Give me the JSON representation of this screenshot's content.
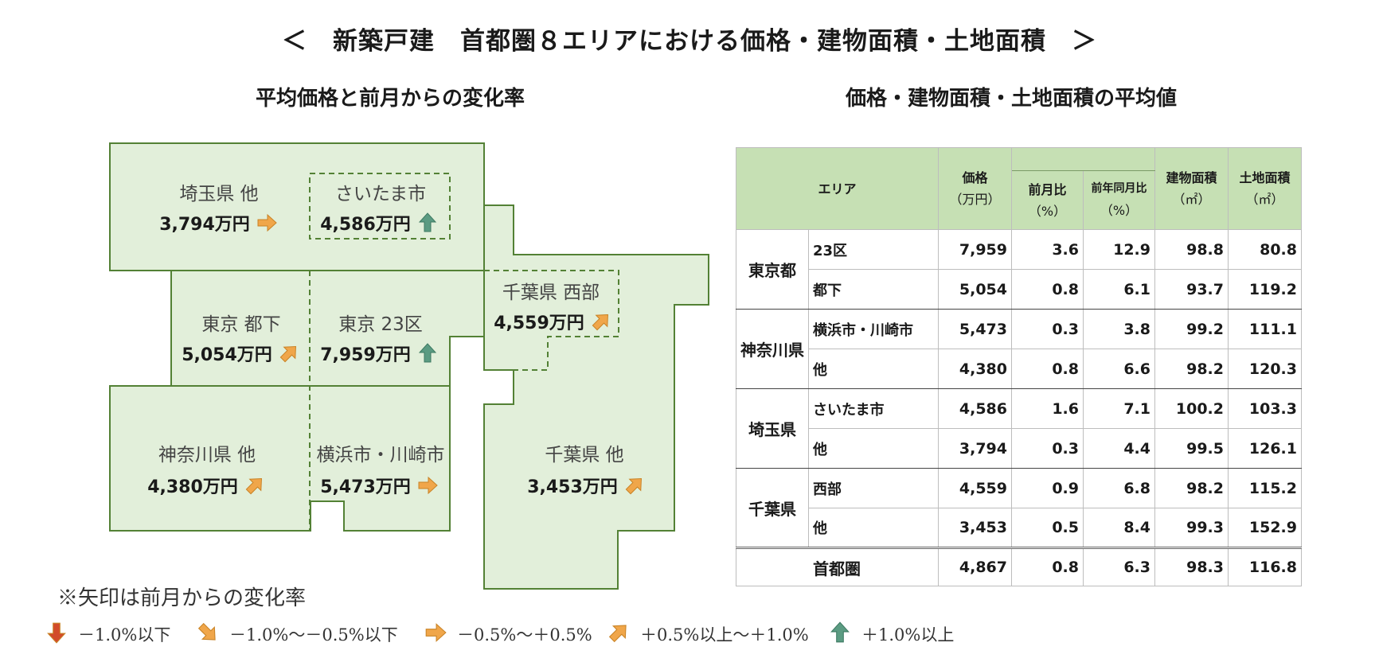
{
  "title": "＜　新築戸建　首都圏８エリアにおける価格・建物面積・土地面積　＞",
  "map_title": "平均価格と前月からの変化率",
  "table_title": "価格・建物面積・土地面積の平均値",
  "colors": {
    "fill": "#e2efda",
    "border": "#538135",
    "header": "#c6e0b4",
    "arrow_up": "#5b9b82",
    "arrow_orange": "#f0a64a",
    "arrow_down": "#d24a2a"
  },
  "regions": [
    {
      "name": "埼玉県 他",
      "price": "3,794万円",
      "arrow": "right"
    },
    {
      "name": "さいたま市",
      "price": "4,586万円",
      "arrow": "up"
    },
    {
      "name": "東京 都下",
      "price": "5,054万円",
      "arrow": "up-right"
    },
    {
      "name": "東京 23区",
      "price": "7,959万円",
      "arrow": "up"
    },
    {
      "name": "千葉県 西部",
      "price": "4,559万円",
      "arrow": "up-right"
    },
    {
      "name": "神奈川県 他",
      "price": "4,380万円",
      "arrow": "up-right"
    },
    {
      "name": "横浜市・川崎市",
      "price": "5,473万円",
      "arrow": "right"
    },
    {
      "name": "千葉県 他",
      "price": "3,453万円",
      "arrow": "up-right"
    }
  ],
  "note": "※矢印は前月からの変化率",
  "legend": [
    {
      "icon": "down",
      "label": "－1.0%以下"
    },
    {
      "icon": "down-right",
      "label": "－1.0%～－0.5%以下"
    },
    {
      "icon": "right",
      "label": "－0.5%～＋0.5%"
    },
    {
      "icon": "up-right",
      "label": "＋0.5%以上～＋1.0%"
    },
    {
      "icon": "up",
      "label": "＋1.0%以上"
    }
  ],
  "table": {
    "headers": {
      "area": "エリア",
      "price": "価格",
      "price_unit": "（万円）",
      "mom": "前月比",
      "mom_unit": "（%）",
      "yoy": "前年同月比",
      "yoy_unit": "（%）",
      "building": "建物面積",
      "building_unit": "（㎡）",
      "land": "土地面積",
      "land_unit": "（㎡）"
    },
    "groups": [
      {
        "pref": "東京都",
        "rows": [
          {
            "sub": "23区",
            "price": "7,959",
            "mom": "3.6",
            "yoy": "12.9",
            "building": "98.8",
            "land": "80.8"
          },
          {
            "sub": "都下",
            "price": "5,054",
            "mom": "0.8",
            "yoy": "6.1",
            "building": "93.7",
            "land": "119.2"
          }
        ]
      },
      {
        "pref": "神奈川県",
        "rows": [
          {
            "sub": "横浜市・川崎市",
            "price": "5,473",
            "mom": "0.3",
            "yoy": "3.8",
            "building": "99.2",
            "land": "111.1"
          },
          {
            "sub": "他",
            "price": "4,380",
            "mom": "0.8",
            "yoy": "6.6",
            "building": "98.2",
            "land": "120.3"
          }
        ]
      },
      {
        "pref": "埼玉県",
        "rows": [
          {
            "sub": "さいたま市",
            "price": "4,586",
            "mom": "1.6",
            "yoy": "7.1",
            "building": "100.2",
            "land": "103.3"
          },
          {
            "sub": "他",
            "price": "3,794",
            "mom": "0.3",
            "yoy": "4.4",
            "building": "99.5",
            "land": "126.1"
          }
        ]
      },
      {
        "pref": "千葉県",
        "rows": [
          {
            "sub": "西部",
            "price": "4,559",
            "mom": "0.9",
            "yoy": "6.8",
            "building": "98.2",
            "land": "115.2"
          },
          {
            "sub": "他",
            "price": "3,453",
            "mom": "0.5",
            "yoy": "8.4",
            "building": "99.3",
            "land": "152.9"
          }
        ]
      }
    ],
    "total": {
      "label": "首都圏",
      "price": "4,867",
      "mom": "0.8",
      "yoy": "6.3",
      "building": "98.3",
      "land": "116.8"
    }
  }
}
